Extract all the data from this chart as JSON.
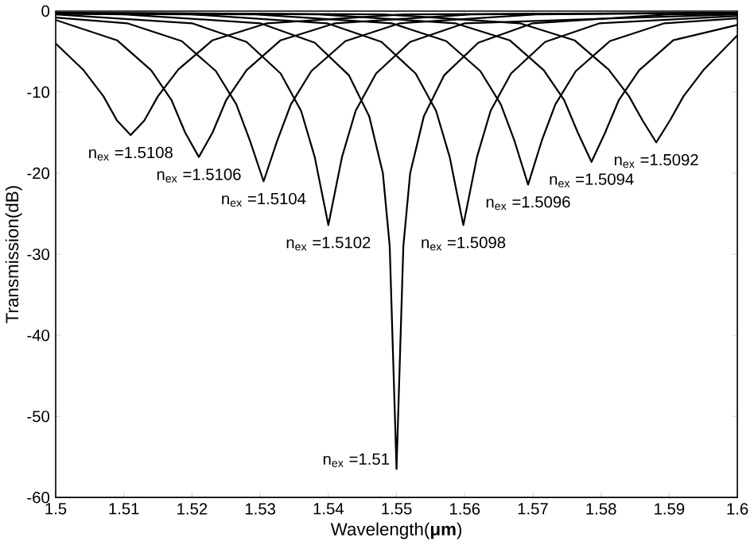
{
  "chart_data": {
    "type": "line",
    "xlabel": "Wavelength(**μm**)",
    "ylabel": "Transmission(dB)",
    "xlim": [
      1.5,
      1.6
    ],
    "ylim": [
      -60,
      0
    ],
    "xticks": [
      1.5,
      1.51,
      1.52,
      1.53,
      1.54,
      1.55,
      1.56,
      1.57,
      1.58,
      1.59,
      1.6
    ],
    "yticks": [
      -60,
      -50,
      -40,
      -30,
      -20,
      -10,
      0
    ],
    "marker": "none",
    "line_style": "solid",
    "series": [
      {
        "color": "#000000",
        "x": [
          1.5,
          1.504,
          1.507,
          1.509,
          1.511,
          1.513,
          1.515,
          1.518,
          1.523,
          1.531,
          1.551,
          1.6
        ],
        "values": [
          -4.0,
          -7.2,
          -10.5,
          -13.5,
          -15.3,
          -13.5,
          -10.5,
          -7.2,
          -3.6,
          -1.5,
          -0.4,
          -0.2
        ]
      },
      {
        "color": "#000000",
        "x": [
          1.5,
          1.509,
          1.514,
          1.517,
          1.519,
          1.521,
          1.523,
          1.525,
          1.528,
          1.533,
          1.541,
          1.561,
          1.6
        ],
        "values": [
          -1.1,
          -3.6,
          -7.3,
          -11,
          -15,
          -18,
          -15,
          -11,
          -7.3,
          -3.6,
          -1.5,
          -0.4,
          -0.2
        ]
      },
      {
        "color": "#000000",
        "x": [
          1.5,
          1.5105,
          1.5185,
          1.5235,
          1.5265,
          1.5285,
          1.5305,
          1.5325,
          1.5345,
          1.5375,
          1.5425,
          1.5505,
          1.5705,
          1.6
        ],
        "values": [
          -0.8,
          -1.5,
          -3.7,
          -7.4,
          -11.5,
          -16,
          -21,
          -16,
          -11.5,
          -7.4,
          -3.7,
          -1.5,
          -0.4,
          -0.2
        ]
      },
      {
        "color": "#000000",
        "x": [
          1.5,
          1.52,
          1.528,
          1.533,
          1.536,
          1.538,
          1.54,
          1.542,
          1.544,
          1.547,
          1.552,
          1.56,
          1.6
        ],
        "values": [
          -0.4,
          -1.5,
          -3.8,
          -7.7,
          -12.3,
          -18,
          -26.4,
          -18,
          -12.3,
          -7.7,
          -3.8,
          -1.5,
          -0.4
        ]
      },
      {
        "color": "#000000",
        "x": [
          1.5,
          1.51,
          1.53,
          1.538,
          1.543,
          1.546,
          1.548,
          1.549,
          1.55,
          1.551,
          1.552,
          1.554,
          1.557,
          1.562,
          1.57,
          1.59,
          1.6
        ],
        "values": [
          -0.3,
          -0.4,
          -1.5,
          -3.9,
          -7.9,
          -13,
          -20,
          -29,
          -56.5,
          -29,
          -20,
          -13,
          -7.9,
          -3.9,
          -1.5,
          -0.4,
          -0.3
        ]
      },
      {
        "color": "#000000",
        "x": [
          1.5,
          1.5198,
          1.5398,
          1.5478,
          1.5528,
          1.5558,
          1.5578,
          1.5598,
          1.5618,
          1.5638,
          1.5668,
          1.5718,
          1.5798,
          1.6
        ],
        "values": [
          -0.3,
          -0.4,
          -1.5,
          -3.8,
          -7.7,
          -12.3,
          -18,
          -26.4,
          -18,
          -12.3,
          -7.7,
          -3.8,
          -1.5,
          -0.6
        ]
      },
      {
        "color": "#000000",
        "x": [
          1.5,
          1.5293,
          1.5493,
          1.5573,
          1.5623,
          1.5653,
          1.5673,
          1.5693,
          1.5713,
          1.5733,
          1.5763,
          1.5813,
          1.5893,
          1.6
        ],
        "values": [
          -0.3,
          -0.4,
          -1.5,
          -3.7,
          -7.4,
          -11.5,
          -16,
          -21.4,
          -16,
          -11.5,
          -7.4,
          -3.7,
          -1.5,
          -0.9
        ]
      },
      {
        "color": "#000000",
        "x": [
          1.5,
          1.5386,
          1.5586,
          1.5666,
          1.5716,
          1.5746,
          1.5766,
          1.5786,
          1.5806,
          1.5826,
          1.5856,
          1.5906,
          1.6
        ],
        "values": [
          -0.2,
          -0.4,
          -1.5,
          -3.6,
          -7.3,
          -11,
          -15,
          -18.6,
          -15,
          -11,
          -7.3,
          -3.6,
          -1.7
        ]
      },
      {
        "color": "#000000",
        "x": [
          1.5,
          1.5481,
          1.5681,
          1.5761,
          1.5811,
          1.5841,
          1.5861,
          1.5881,
          1.5901,
          1.5921,
          1.5951,
          1.6
        ],
        "values": [
          -0.2,
          -0.4,
          -1.5,
          -3.6,
          -7.2,
          -10.5,
          -13.5,
          -16.2,
          -13.5,
          -10.5,
          -7.2,
          -3.0
        ]
      }
    ],
    "annotations": [
      {
        "text": "n$_{ex}$ =1.5108",
        "x": 1.511,
        "y": -15.3
      },
      {
        "text": "n$_{ex}$ =1.5106",
        "x": 1.521,
        "y": -18
      },
      {
        "text": "n$_{ex}$ =1.5104",
        "x": 1.5305,
        "y": -21
      },
      {
        "text": "n$_{ex}$ =1.5102",
        "x": 1.54,
        "y": -26.4
      },
      {
        "text": "n$_{ex}$ =1.51",
        "x": 1.55,
        "y": -56.5
      },
      {
        "text": "n$_{ex}$ =1.5098",
        "x": 1.5598,
        "y": -26.4
      },
      {
        "text": "n$_{ex}$ =1.5096",
        "x": 1.5693,
        "y": -21.4
      },
      {
        "text": "n$_{ex}$ =1.5094",
        "x": 1.5786,
        "y": -18.6
      },
      {
        "text": "n$_{ex}$ =1.5092",
        "x": 1.5881,
        "y": -16.2
      }
    ]
  }
}
